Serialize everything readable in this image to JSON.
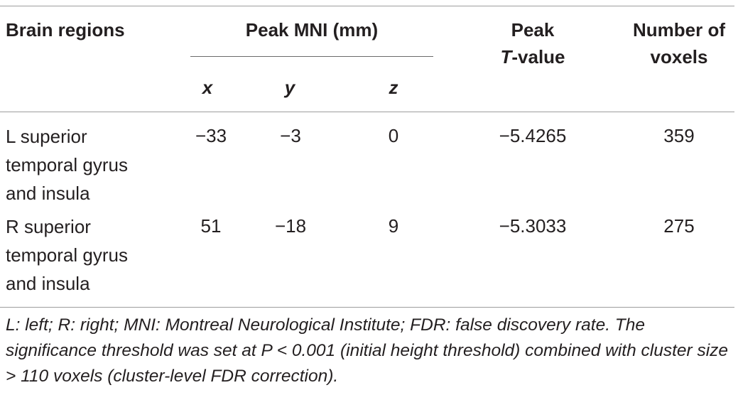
{
  "table": {
    "headers": {
      "brain_regions": "Brain regions",
      "peak_mni": "Peak MNI (mm)",
      "peak_label": "Peak",
      "t_value_t": "T",
      "t_value_rest": "-value",
      "number_of": "Number of",
      "voxels": "voxels",
      "x": "x",
      "y": "y",
      "z": "z"
    },
    "rows": [
      {
        "region_lines": [
          "L superior",
          "temporal gyrus",
          "and insula"
        ],
        "x": "−33",
        "y": "−3",
        "z": "0",
        "t_value": "−5.4265",
        "voxels": "359"
      },
      {
        "region_lines": [
          "R superior",
          "temporal gyrus",
          "and insula"
        ],
        "x": "51",
        "y": "−18",
        "z": "9",
        "t_value": "−5.3033",
        "voxels": "275"
      }
    ],
    "footnote": "L: left; R: right; MNI: Montreal Neurological Institute; FDR: false discovery rate. The significance threshold was set at P < 0.001 (initial height threshold) combined with cluster size > 110 voxels (cluster-level FDR correction)."
  }
}
